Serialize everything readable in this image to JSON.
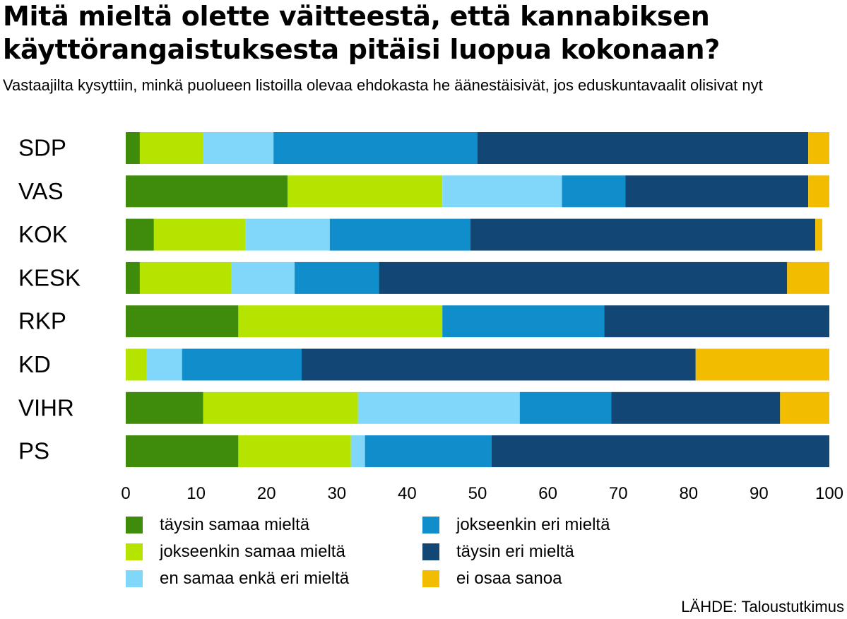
{
  "title": "Mitä mieltä olette väitteestä, että kannabiksen käyttörangaistuksesta pitäisi luopua kokonaan?",
  "subtitle": "Vastaajilta kysyttiin, minkä puolueen listoilla olevaa ehdokasta he äänestäisivät, jos eduskuntavaalit olisivat nyt",
  "source": "LÄHDE: Taloustutkimus",
  "chart_data": {
    "type": "bar",
    "orientation": "horizontal",
    "stacked": true,
    "title": "Mitä mieltä olette väitteestä, että kannabiksen käyttörangaistuksesta pitäisi luopua kokonaan?",
    "xlabel": "",
    "ylabel": "",
    "xlim": [
      0,
      100
    ],
    "xticks": [
      0,
      10,
      20,
      30,
      40,
      50,
      60,
      70,
      80,
      90,
      100
    ],
    "categories": [
      "SDP",
      "VAS",
      "KOK",
      "KESK",
      "RKP",
      "KD",
      "VIHR",
      "PS"
    ],
    "series": [
      {
        "name": "täysin samaa mieltä",
        "color": "#3f8c0c",
        "values": [
          2,
          23,
          4,
          2,
          16,
          0,
          11,
          16
        ]
      },
      {
        "name": "jokseenkin samaa mieltä",
        "color": "#b4e400",
        "values": [
          9,
          22,
          13,
          13,
          29,
          3,
          22,
          16
        ]
      },
      {
        "name": "en samaa enkä eri mieltä",
        "color": "#80d7fa",
        "values": [
          10,
          17,
          12,
          9,
          0,
          5,
          23,
          2
        ]
      },
      {
        "name": "jokseenkin eri mieltä",
        "color": "#108ecb",
        "values": [
          29,
          9,
          20,
          12,
          23,
          17,
          13,
          18
        ]
      },
      {
        "name": "täysin eri mieltä",
        "color": "#124675",
        "values": [
          47,
          26,
          49,
          58,
          32,
          56,
          24,
          48
        ]
      },
      {
        "name": "ei osaa sanoa",
        "color": "#f2bd00",
        "values": [
          3,
          3,
          1,
          6,
          0,
          19,
          7,
          0
        ]
      }
    ],
    "legend": "bottom"
  }
}
